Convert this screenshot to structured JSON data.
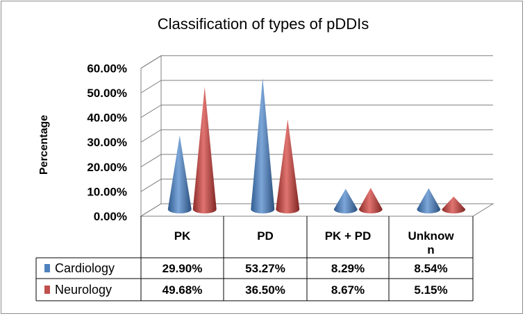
{
  "chart_data": {
    "type": "bar",
    "style": "3d-cone",
    "title": "Classification of types of pDDIs",
    "ylabel": "Percentage",
    "xlabel": "",
    "ylim": [
      0,
      60
    ],
    "ytick_step": 10,
    "ytick_labels": [
      "0.00%",
      "10.00%",
      "20.00%",
      "30.00%",
      "40.00%",
      "50.00%",
      "60.00%"
    ],
    "categories": [
      "PK",
      "PD",
      "PK + PD",
      "Unknown"
    ],
    "series": [
      {
        "name": "Cardiology",
        "color": "#4f81bd",
        "values": [
          29.9,
          53.27,
          8.29,
          8.54
        ],
        "labels": [
          "29.90%",
          "53.27%",
          "8.29%",
          "8.54%"
        ]
      },
      {
        "name": "Neurology",
        "color": "#c0504d",
        "values": [
          49.68,
          36.5,
          8.67,
          5.15
        ],
        "labels": [
          "49.68%",
          "36.50%",
          "8.67%",
          "5.15%"
        ]
      }
    ],
    "grid": true,
    "legend": "data-table"
  }
}
